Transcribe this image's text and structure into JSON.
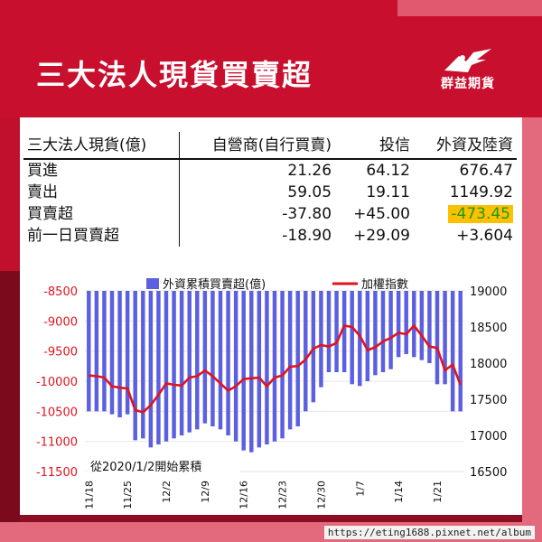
{
  "header": {
    "title": "三大法人現貨買賣超",
    "logo_text": "群益期貨"
  },
  "table": {
    "headers": [
      "三大法人現貨(億)",
      "自營商(自行買賣)",
      "投信",
      "外資及陸資"
    ],
    "rows": [
      {
        "label": "買進",
        "values": [
          "21.26",
          "64.12",
          "676.47"
        ]
      },
      {
        "label": "賣出",
        "values": [
          "59.05",
          "19.11",
          "1149.92"
        ]
      },
      {
        "label": "買賣超",
        "values": [
          "-37.80",
          "+45.00",
          "-473.45"
        ]
      },
      {
        "label": "前一日買賣超",
        "values": [
          "-18.90",
          "+29.09",
          "+3.604"
        ]
      }
    ]
  },
  "chart_data": {
    "type": "bar",
    "legend": {
      "bar_label": "外資累積買賣超(億)",
      "line_label": "加權指數",
      "position": "top"
    },
    "x_tick_labels": [
      "11/18",
      "11/25",
      "12/2",
      "12/9",
      "12/16",
      "12/23",
      "12/30",
      "1/7",
      "1/14",
      "1/21"
    ],
    "x_tick_indices": [
      0,
      5,
      10,
      15,
      20,
      25,
      30,
      35,
      40,
      45
    ],
    "y_left": {
      "min": -11500,
      "max": -8500,
      "step": 500,
      "ticks": [
        "-8500",
        "-9000",
        "-9500",
        "-10000",
        "-10500",
        "-11000",
        "-11500"
      ]
    },
    "y_right": {
      "min": 16500,
      "max": 19000,
      "step": 500,
      "ticks": [
        "19000",
        "18500",
        "18000",
        "17500",
        "17000",
        "16500"
      ]
    },
    "note": "從2020/1/2開始累積",
    "bar_color": "#5b5fe0",
    "line_color": "#e0141e",
    "series": [
      {
        "name": "外資累積買賣超(億)",
        "axis": "left",
        "values": [
          -10500,
          -10500,
          -10500,
          -10550,
          -10600,
          -10550,
          -10980,
          -10950,
          -11100,
          -11050,
          -11000,
          -10950,
          -10900,
          -10850,
          -10800,
          -10700,
          -10750,
          -10800,
          -10900,
          -11000,
          -11150,
          -11180,
          -11100,
          -11050,
          -11000,
          -10950,
          -10800,
          -10750,
          -10500,
          -10350,
          -10100,
          -9850,
          -9850,
          -9850,
          -10050,
          -10080,
          -10000,
          -9900,
          -9850,
          -9800,
          -9600,
          -9550,
          -9600,
          -9650,
          -9700,
          -10050,
          -10050,
          -10500,
          -10500
        ]
      },
      {
        "name": "加權指數",
        "axis": "right",
        "values": [
          17830,
          17820,
          17800,
          17680,
          17660,
          17650,
          17350,
          17320,
          17420,
          17560,
          17720,
          17700,
          17690,
          17800,
          17820,
          17900,
          17820,
          17720,
          17620,
          17680,
          17780,
          17790,
          17800,
          17680,
          17800,
          17830,
          17950,
          17960,
          18050,
          18200,
          18250,
          18230,
          18280,
          18520,
          18500,
          18380,
          18180,
          18220,
          18300,
          18350,
          18420,
          18400,
          18520,
          18380,
          18230,
          18210,
          17900,
          17980,
          17700
        ]
      }
    ]
  },
  "footer": {
    "url": "https://eting1688.pixnet.net/album"
  }
}
